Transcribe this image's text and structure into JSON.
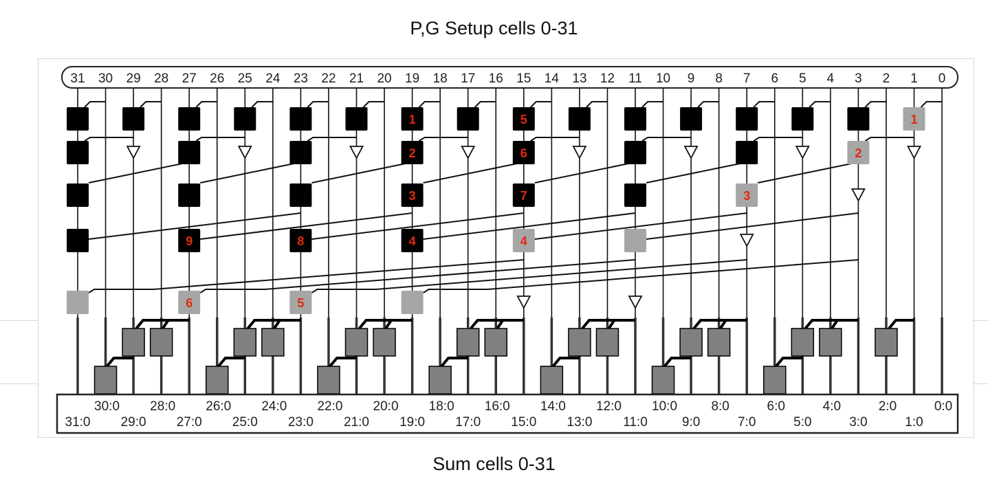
{
  "title_top": "P,G Setup cells 0-31",
  "title_bottom": "Sum cells 0-31",
  "bit_labels": [
    "31",
    "30",
    "29",
    "28",
    "27",
    "26",
    "25",
    "24",
    "23",
    "22",
    "21",
    "20",
    "19",
    "18",
    "17",
    "16",
    "15",
    "14",
    "13",
    "12",
    "11",
    "10",
    "9",
    "8",
    "7",
    "6",
    "5",
    "4",
    "3",
    "2",
    "1",
    "0"
  ],
  "bus_labels_even": [
    "30:0",
    "28:0",
    "26:0",
    "24:0",
    "22:0",
    "20:0",
    "18:0",
    "16:0",
    "14:0",
    "12:0",
    "10:0",
    "8:0",
    "6:0",
    "4:0",
    "2:0",
    "0:0"
  ],
  "bus_labels_odd": [
    "31:0",
    "29:0",
    "27:0",
    "25:0",
    "23:0",
    "21:0",
    "19:0",
    "17:0",
    "15:0",
    "13:0",
    "11:0",
    "9:0",
    "7:0",
    "5:0",
    "3:0",
    "1:0"
  ],
  "colors": {
    "black_cell": "#000000",
    "gray_cell": "#a6a6a6",
    "sum_cell": "#808080",
    "label_red": "#e02a10",
    "wire": "#111111"
  },
  "setup_cells": [
    {
      "row": 1,
      "bit": 31,
      "kind": "black",
      "label": "",
      "src": 30
    },
    {
      "row": 1,
      "bit": 29,
      "kind": "black",
      "label": "",
      "src": 28
    },
    {
      "row": 1,
      "bit": 27,
      "kind": "black",
      "label": "",
      "src": 26
    },
    {
      "row": 1,
      "bit": 25,
      "kind": "black",
      "label": "",
      "src": 24
    },
    {
      "row": 1,
      "bit": 23,
      "kind": "black",
      "label": "",
      "src": 22
    },
    {
      "row": 1,
      "bit": 21,
      "kind": "black",
      "label": "",
      "src": 20
    },
    {
      "row": 1,
      "bit": 19,
      "kind": "black",
      "label": "1",
      "src": 18
    },
    {
      "row": 1,
      "bit": 17,
      "kind": "black",
      "label": "",
      "src": 16
    },
    {
      "row": 1,
      "bit": 15,
      "kind": "black",
      "label": "5",
      "src": 14
    },
    {
      "row": 1,
      "bit": 13,
      "kind": "black",
      "label": "",
      "src": 12
    },
    {
      "row": 1,
      "bit": 11,
      "kind": "black",
      "label": "",
      "src": 10
    },
    {
      "row": 1,
      "bit": 9,
      "kind": "black",
      "label": "",
      "src": 8
    },
    {
      "row": 1,
      "bit": 7,
      "kind": "black",
      "label": "",
      "src": 6
    },
    {
      "row": 1,
      "bit": 5,
      "kind": "black",
      "label": "",
      "src": 4
    },
    {
      "row": 1,
      "bit": 3,
      "kind": "black",
      "label": "",
      "src": 2
    },
    {
      "row": 1,
      "bit": 1,
      "kind": "gray",
      "label": "1",
      "src": 0
    },
    {
      "row": 2,
      "bit": 31,
      "kind": "black",
      "label": "",
      "src": 29
    },
    {
      "row": 2,
      "bit": 29,
      "kind": "buffer"
    },
    {
      "row": 2,
      "bit": 27,
      "kind": "black",
      "label": "",
      "src": 25
    },
    {
      "row": 2,
      "bit": 25,
      "kind": "buffer"
    },
    {
      "row": 2,
      "bit": 23,
      "kind": "black",
      "label": "",
      "src": 21
    },
    {
      "row": 2,
      "bit": 21,
      "kind": "buffer"
    },
    {
      "row": 2,
      "bit": 19,
      "kind": "black",
      "label": "2",
      "src": 17
    },
    {
      "row": 2,
      "bit": 17,
      "kind": "buffer"
    },
    {
      "row": 2,
      "bit": 15,
      "kind": "black",
      "label": "6",
      "src": 13
    },
    {
      "row": 2,
      "bit": 13,
      "kind": "buffer"
    },
    {
      "row": 2,
      "bit": 11,
      "kind": "black",
      "label": "",
      "src": 9
    },
    {
      "row": 2,
      "bit": 9,
      "kind": "buffer"
    },
    {
      "row": 2,
      "bit": 7,
      "kind": "black",
      "label": "",
      "src": 5
    },
    {
      "row": 2,
      "bit": 5,
      "kind": "buffer"
    },
    {
      "row": 2,
      "bit": 3,
      "kind": "gray",
      "label": "2",
      "src": 1
    },
    {
      "row": 2,
      "bit": 1,
      "kind": "buffer"
    },
    {
      "row": 3,
      "bit": 31,
      "kind": "black",
      "label": "",
      "src": 27
    },
    {
      "row": 3,
      "bit": 27,
      "kind": "black",
      "label": "",
      "src": 23
    },
    {
      "row": 3,
      "bit": 23,
      "kind": "black",
      "label": "",
      "src": 19
    },
    {
      "row": 3,
      "bit": 19,
      "kind": "black",
      "label": "3",
      "src": 15
    },
    {
      "row": 3,
      "bit": 15,
      "kind": "black",
      "label": "7",
      "src": 11
    },
    {
      "row": 3,
      "bit": 11,
      "kind": "black",
      "label": "",
      "src": 7
    },
    {
      "row": 3,
      "bit": 7,
      "kind": "gray",
      "label": "3",
      "src": 3
    },
    {
      "row": 3,
      "bit": 3,
      "kind": "buffer"
    },
    {
      "row": 4,
      "bit": 31,
      "kind": "black",
      "label": "",
      "src": 23
    },
    {
      "row": 4,
      "bit": 27,
      "kind": "black",
      "label": "9",
      "src": 19
    },
    {
      "row": 4,
      "bit": 23,
      "kind": "black",
      "label": "8",
      "src": 15
    },
    {
      "row": 4,
      "bit": 19,
      "kind": "black",
      "label": "4",
      "src": 11
    },
    {
      "row": 4,
      "bit": 15,
      "kind": "gray",
      "label": "4",
      "src": 7
    },
    {
      "row": 4,
      "bit": 11,
      "kind": "gray",
      "label": "",
      "src": 3
    },
    {
      "row": 4,
      "bit": 7,
      "kind": "buffer"
    },
    {
      "row": 5,
      "bit": 31,
      "kind": "gray",
      "label": "",
      "src": 15
    },
    {
      "row": 5,
      "bit": 27,
      "kind": "gray",
      "label": "6",
      "src": 11
    },
    {
      "row": 5,
      "bit": 23,
      "kind": "gray",
      "label": "5",
      "src": 7
    },
    {
      "row": 5,
      "bit": 19,
      "kind": "gray",
      "label": "",
      "src": 3
    },
    {
      "row": 5,
      "bit": 15,
      "kind": "buffer"
    },
    {
      "row": 5,
      "bit": 11,
      "kind": "buffer"
    }
  ],
  "sum_groups": [
    {
      "src": 27,
      "upper": [
        29,
        28
      ],
      "lower": 30
    },
    {
      "src": 23,
      "upper": [
        25,
        24
      ],
      "lower": 26
    },
    {
      "src": 19,
      "upper": [
        21,
        20
      ],
      "lower": 22
    },
    {
      "src": 15,
      "upper": [
        17,
        16
      ],
      "lower": 18
    },
    {
      "src": 11,
      "upper": [
        13,
        12
      ],
      "lower": 14
    },
    {
      "src": 7,
      "upper": [
        9,
        8
      ],
      "lower": 10
    },
    {
      "src": 3,
      "upper": [
        5,
        4
      ],
      "lower": 6
    },
    {
      "src": 1,
      "upper": [
        2
      ],
      "lower": null
    }
  ]
}
